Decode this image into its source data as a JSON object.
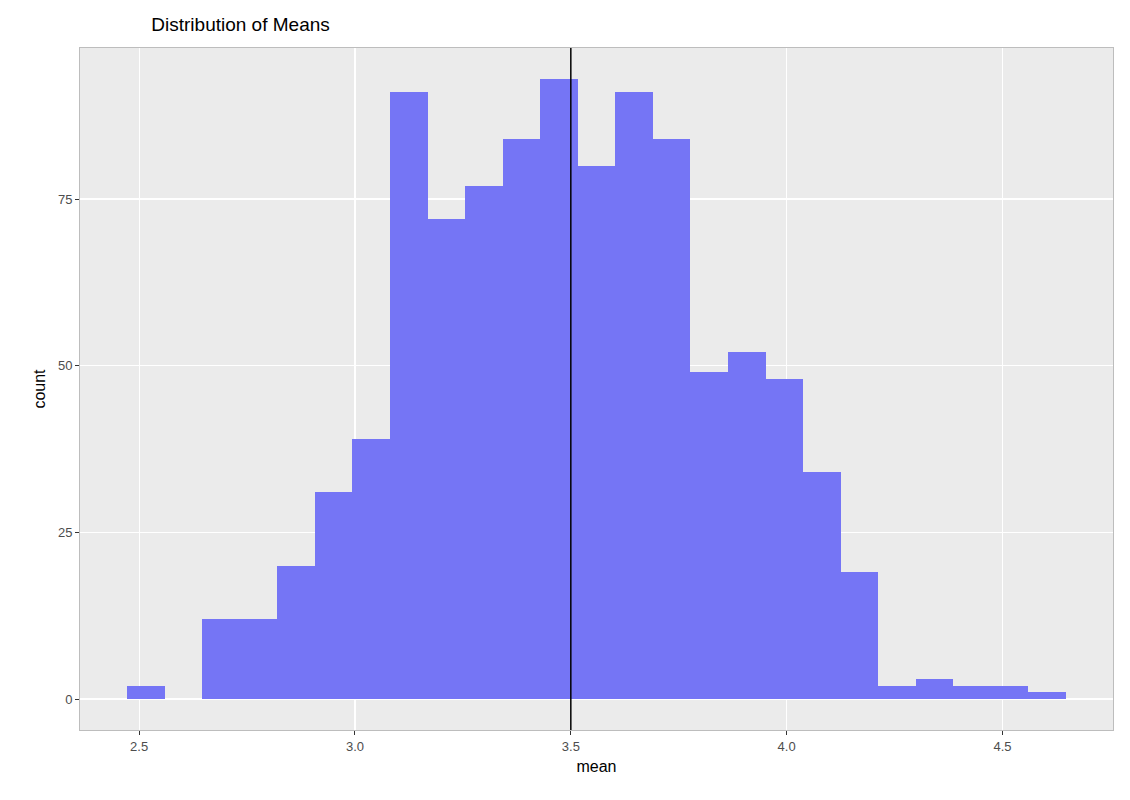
{
  "chart_data": {
    "type": "histogram",
    "title": "Distribution of Means",
    "x_label": "mean",
    "y_label": "count",
    "bins": [
      2.472,
      2.559,
      2.646,
      2.733,
      2.82,
      2.907,
      2.994,
      3.081,
      3.168,
      3.255,
      3.342,
      3.429,
      3.516,
      3.603,
      3.69,
      3.777,
      3.864,
      3.951,
      4.038,
      4.125,
      4.212,
      4.299,
      4.386,
      4.473,
      4.56,
      4.647
    ],
    "values": [
      2,
      0,
      12,
      12,
      20,
      31,
      39,
      91,
      72,
      77,
      84,
      93,
      80,
      91,
      84,
      49,
      52,
      48,
      34,
      19,
      2,
      3,
      2,
      2,
      1
    ],
    "color": "#7575f5",
    "reference_line": 3.5,
    "xlim": [
      2.363,
      4.756
    ],
    "xticks": [
      2.5,
      {
        "value": 3,
        "label": "3.0"
      },
      3.5,
      {
        "value": 4,
        "label": "4.0"
      },
      4.5
    ],
    "ylim": [
      -4.65,
      97.65
    ],
    "yticks": [
      0,
      25,
      50,
      75
    ],
    "grid": true
  }
}
